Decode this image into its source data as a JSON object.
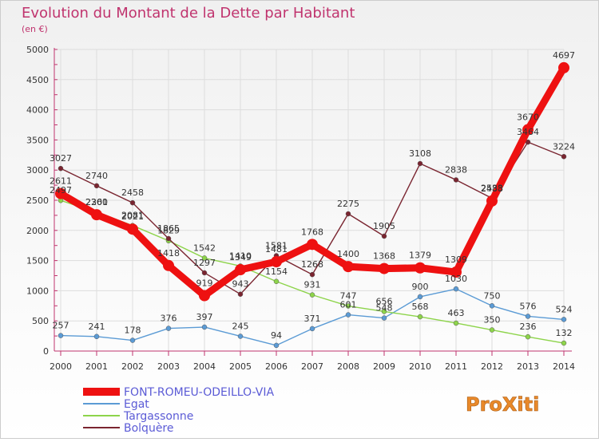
{
  "header": {
    "title": "Evolution du Montant de la Dette par Habitant",
    "subtitle": "(en €)"
  },
  "logo": {
    "text": "ProXiti"
  },
  "colors": {
    "background_top": "#f2f2f2",
    "background_bottom": "#ffffff",
    "title": "#c0346e",
    "axis": "#c0346e",
    "gridline": "#dddddd",
    "label": "#333333",
    "legend_text": "#5b5bd6"
  },
  "chart_data": {
    "type": "line",
    "title": "Evolution du Montant de la Dette par Habitant",
    "subtitle": "(en €)",
    "ylabel": "",
    "xlabel": "",
    "ylim": [
      0,
      5000
    ],
    "yticks": [
      0,
      500,
      1000,
      1500,
      2000,
      2500,
      3000,
      3500,
      4000,
      4500,
      5000
    ],
    "grid": true,
    "legend_position": "bottom-left",
    "x": [
      "2000",
      "2001",
      "2002",
      "2003",
      "2004",
      "2005",
      "2006",
      "2007",
      "2008",
      "2009",
      "2010",
      "2011",
      "2012",
      "2013",
      "2014"
    ],
    "series": [
      {
        "name": "FONT-ROMEU-ODEILLO-VIA",
        "color": "#ee1111",
        "emphasis": true,
        "values": [
          2611,
          2260,
          2021,
          1418,
          919,
          1349,
          1481,
          1768,
          1400,
          1368,
          1379,
          1309,
          2488,
          3670,
          4697
        ]
      },
      {
        "name": "Egat",
        "color": "#5b9bd5",
        "values": [
          257,
          241,
          178,
          376,
          397,
          245,
          94,
          371,
          601,
          548,
          900,
          1030,
          750,
          576,
          524
        ]
      },
      {
        "name": "Targassonne",
        "color": "#8dd44a",
        "values": [
          2497,
          2301,
          2081,
          1829,
          1542,
          1410,
          1154,
          931,
          747,
          656,
          568,
          463,
          350,
          236,
          132
        ]
      },
      {
        "name": "Bolquère",
        "color": "#7a2530",
        "values": [
          3027,
          2740,
          2458,
          1865,
          1297,
          943,
          1581,
          1268,
          2275,
          1905,
          3108,
          2838,
          2533,
          3464,
          3224
        ]
      }
    ]
  }
}
